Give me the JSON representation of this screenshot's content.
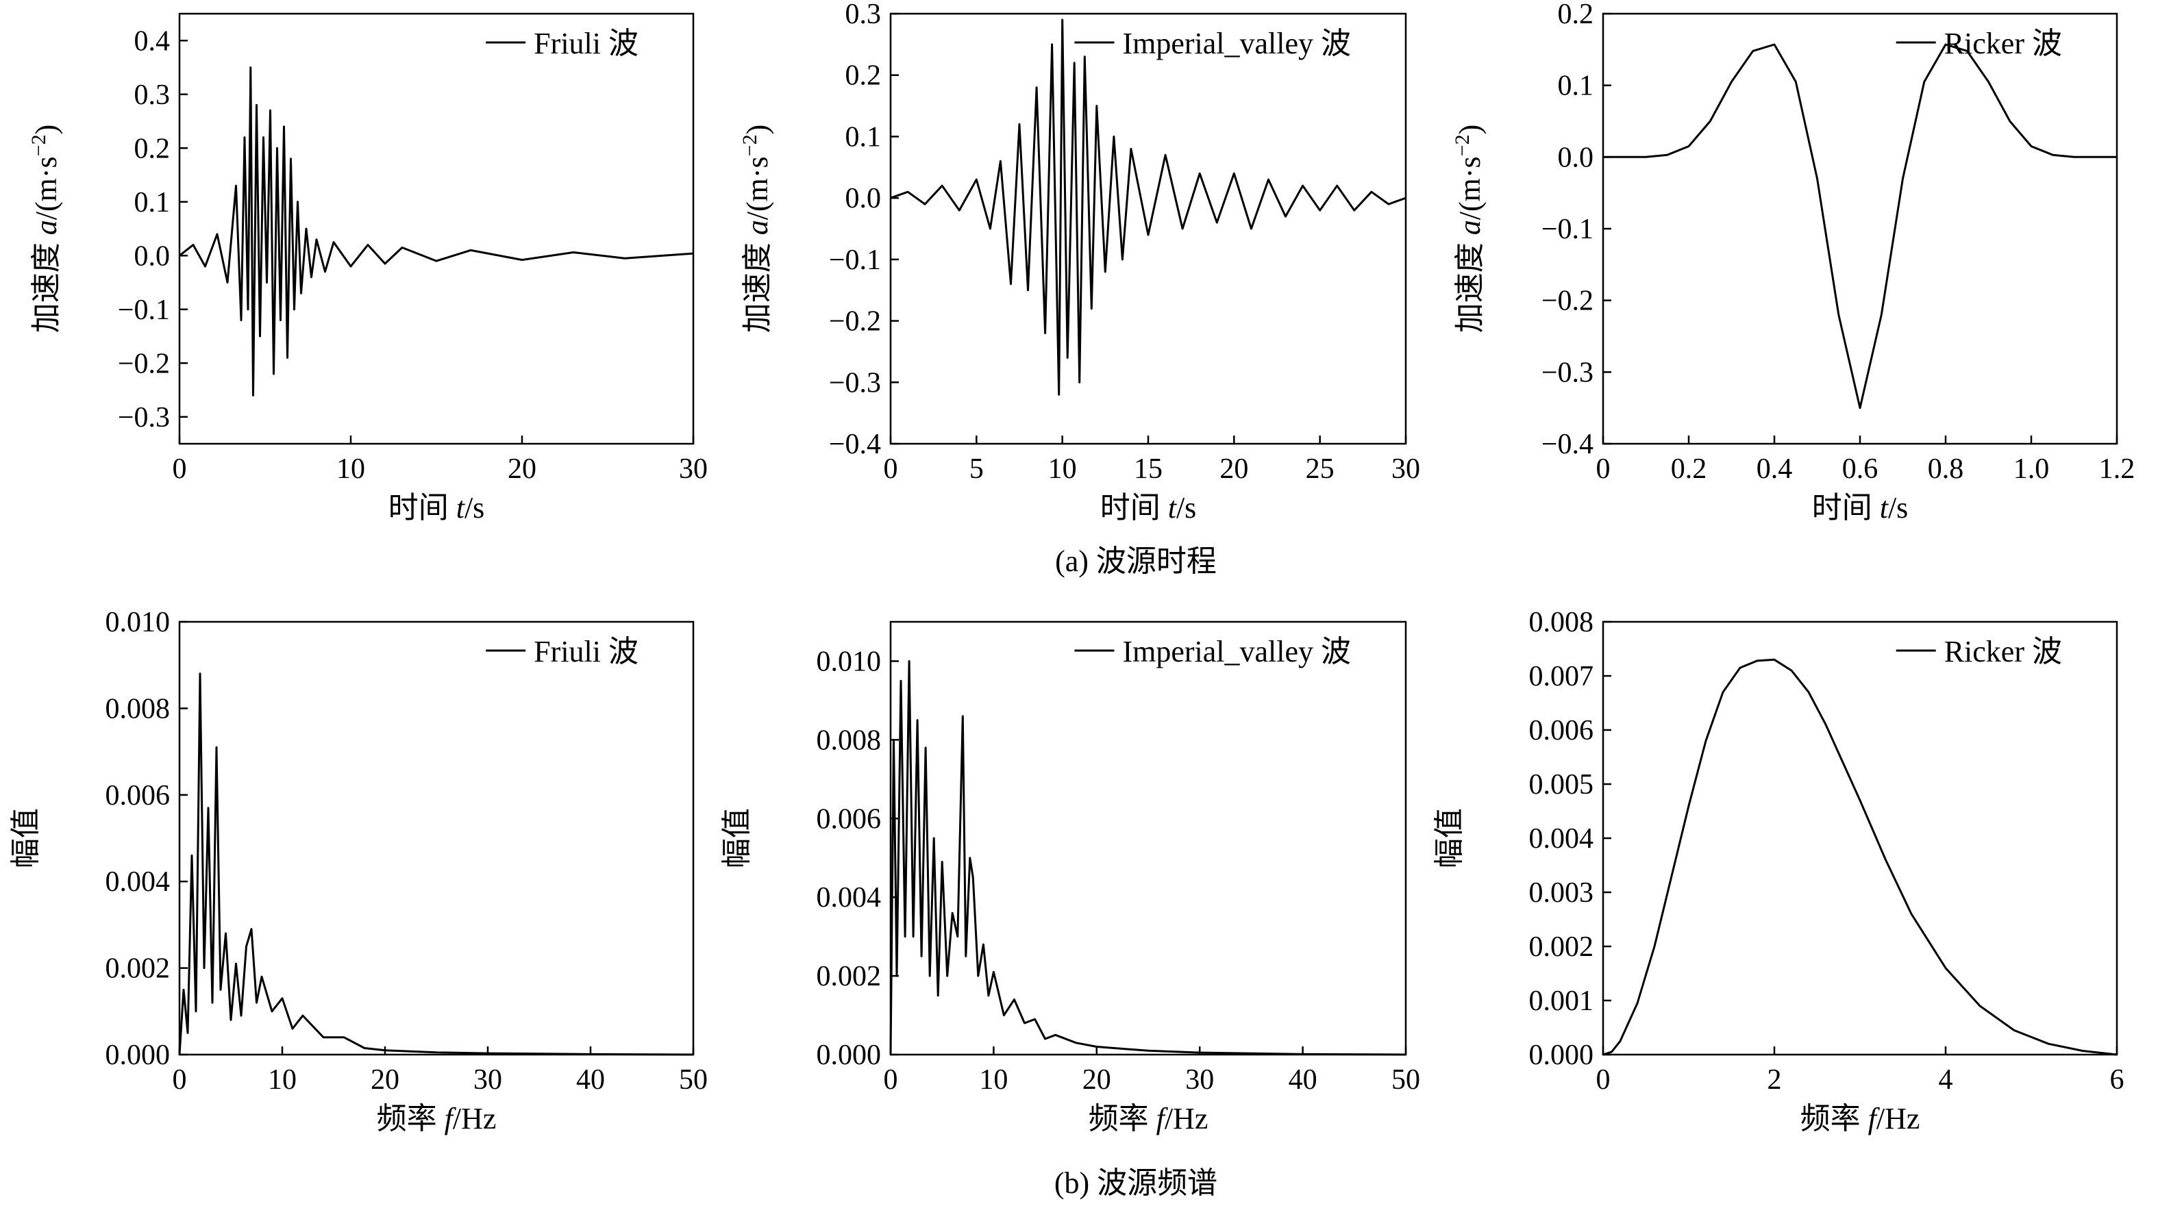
{
  "figure": {
    "captions": [
      {
        "text": "(a) 波源时程"
      },
      {
        "text": "(b) 波源频谱"
      }
    ]
  },
  "chart_data": [
    {
      "id": "friuli-time",
      "type": "line",
      "xlabel_text": "时间 ",
      "xlabel_var": "t",
      "xlabel_unit": "/s",
      "ylabel_text": "加速度 ",
      "ylabel_var": "a",
      "ylabel_unit": "/(m·s",
      "ylabel_sup": "−2",
      "ylabel_close": ")",
      "xlim": [
        0,
        30
      ],
      "ylim": [
        -0.35,
        0.45
      ],
      "xticks": [
        0,
        10,
        20,
        30
      ],
      "xtick_labels": [
        "0",
        "10",
        "20",
        "30"
      ],
      "yticks": [
        -0.3,
        -0.2,
        -0.1,
        0,
        0.1,
        0.2,
        0.3,
        0.4
      ],
      "ytick_labels": [
        "−0.3",
        "−0.2",
        "−0.1",
        "0.0",
        "0.1",
        "0.2",
        "0.3",
        "0.4"
      ],
      "legend": "Friuli 波",
      "legend_position": "top-right",
      "grid": false,
      "series": [
        {
          "name": "Friuli 波",
          "x": [
            0,
            0.8,
            1.5,
            2.2,
            2.8,
            3.3,
            3.6,
            3.8,
            4.0,
            4.15,
            4.3,
            4.5,
            4.7,
            4.9,
            5.1,
            5.3,
            5.5,
            5.7,
            5.9,
            6.1,
            6.3,
            6.5,
            6.7,
            6.9,
            7.1,
            7.4,
            7.7,
            8.0,
            8.5,
            9,
            10,
            11,
            12,
            13,
            15,
            17,
            20,
            23,
            26,
            30
          ],
          "y": [
            0,
            0.02,
            -0.02,
            0.04,
            -0.05,
            0.13,
            -0.12,
            0.22,
            -0.1,
            0.35,
            -0.26,
            0.28,
            -0.15,
            0.22,
            -0.05,
            0.27,
            -0.22,
            0.2,
            -0.12,
            0.24,
            -0.19,
            0.18,
            -0.1,
            0.1,
            -0.07,
            0.05,
            -0.04,
            0.03,
            -0.03,
            0.025,
            -0.02,
            0.02,
            -0.015,
            0.015,
            -0.01,
            0.01,
            -0.008,
            0.006,
            -0.005,
            0.004
          ]
        }
      ]
    },
    {
      "id": "imperial-time",
      "type": "line",
      "xlabel_text": "时间 ",
      "xlabel_var": "t",
      "xlabel_unit": "/s",
      "ylabel_text": "加速度 ",
      "ylabel_var": "a",
      "ylabel_unit": "/(m·s",
      "ylabel_sup": "−2",
      "ylabel_close": ")",
      "xlim": [
        0,
        30
      ],
      "ylim": [
        -0.4,
        0.3
      ],
      "xticks": [
        0,
        5,
        10,
        15,
        20,
        25,
        30
      ],
      "xtick_labels": [
        "0",
        "5",
        "10",
        "15",
        "20",
        "25",
        "30"
      ],
      "yticks": [
        -0.4,
        -0.3,
        -0.2,
        -0.1,
        0,
        0.1,
        0.2,
        0.3
      ],
      "ytick_labels": [
        "−0.4",
        "−0.3",
        "−0.2",
        "−0.1",
        "0.0",
        "0.1",
        "0.2",
        "0.3"
      ],
      "legend": "Imperial_valley 波",
      "legend_position": "top-right",
      "grid": false,
      "series": [
        {
          "name": "Imperial_valley 波",
          "x": [
            0,
            1,
            2,
            3,
            4,
            5,
            5.8,
            6.4,
            7.0,
            7.5,
            8.0,
            8.5,
            9.0,
            9.4,
            9.8,
            10.0,
            10.3,
            10.7,
            11.0,
            11.3,
            11.7,
            12.0,
            12.5,
            13.0,
            13.5,
            14.0,
            15.0,
            16.0,
            17.0,
            18.0,
            19.0,
            20.0,
            21.0,
            22.0,
            23.0,
            24.0,
            25.0,
            26.0,
            27.0,
            28.0,
            29.0,
            30.0
          ],
          "y": [
            0,
            0.01,
            -0.01,
            0.02,
            -0.02,
            0.03,
            -0.05,
            0.06,
            -0.14,
            0.12,
            -0.15,
            0.18,
            -0.22,
            0.25,
            -0.32,
            0.29,
            -0.26,
            0.22,
            -0.3,
            0.23,
            -0.18,
            0.15,
            -0.12,
            0.1,
            -0.1,
            0.08,
            -0.06,
            0.07,
            -0.05,
            0.04,
            -0.04,
            0.04,
            -0.05,
            0.03,
            -0.03,
            0.02,
            -0.02,
            0.02,
            -0.02,
            0.01,
            -0.01,
            0.0
          ]
        }
      ]
    },
    {
      "id": "ricker-time",
      "type": "line",
      "xlabel_text": "时间 ",
      "xlabel_var": "t",
      "xlabel_unit": "/s",
      "ylabel_text": "加速度 ",
      "ylabel_var": "a",
      "ylabel_unit": "/(m·s",
      "ylabel_sup": "−2",
      "ylabel_close": ")",
      "xlim": [
        0,
        1.2
      ],
      "ylim": [
        -0.4,
        0.2
      ],
      "xticks": [
        0,
        0.2,
        0.4,
        0.6,
        0.8,
        1.0,
        1.2
      ],
      "xtick_labels": [
        "0",
        "0.2",
        "0.4",
        "0.6",
        "0.8",
        "1.0",
        "1.2"
      ],
      "yticks": [
        -0.4,
        -0.3,
        -0.2,
        -0.1,
        0,
        0.1,
        0.2
      ],
      "ytick_labels": [
        "−0.4",
        "−0.3",
        "−0.2",
        "−0.1",
        "0.0",
        "0.1",
        "0.2"
      ],
      "legend": "Ricker 波",
      "legend_position": "top-right",
      "grid": false,
      "series": [
        {
          "name": "Ricker 波",
          "x": [
            0,
            0.1,
            0.15,
            0.2,
            0.25,
            0.3,
            0.35,
            0.4,
            0.45,
            0.5,
            0.55,
            0.6,
            0.65,
            0.7,
            0.75,
            0.8,
            0.85,
            0.9,
            0.95,
            1.0,
            1.05,
            1.1,
            1.2
          ],
          "y": [
            0.0,
            0.0,
            0.003,
            0.015,
            0.05,
            0.105,
            0.148,
            0.157,
            0.105,
            -0.03,
            -0.22,
            -0.35,
            -0.22,
            -0.03,
            0.105,
            0.157,
            0.148,
            0.105,
            0.05,
            0.015,
            0.003,
            0.0,
            0.0
          ]
        }
      ]
    },
    {
      "id": "friuli-freq",
      "type": "line",
      "xlabel_text": "频率 ",
      "xlabel_var": "f",
      "xlabel_unit": "/Hz",
      "ylabel_text": "幅值",
      "xlim": [
        0,
        50
      ],
      "ylim": [
        0,
        0.01
      ],
      "xticks": [
        0,
        10,
        20,
        30,
        40,
        50
      ],
      "xtick_labels": [
        "0",
        "10",
        "20",
        "30",
        "40",
        "50"
      ],
      "yticks": [
        0,
        0.002,
        0.004,
        0.006,
        0.008,
        0.01
      ],
      "ytick_labels": [
        "0.000",
        "0.002",
        "0.004",
        "0.006",
        "0.008",
        "0.010"
      ],
      "legend": "Friuli 波",
      "legend_position": "top-right",
      "grid": false,
      "series": [
        {
          "name": "Friuli 波",
          "x": [
            0,
            0.4,
            0.8,
            1.2,
            1.6,
            2.0,
            2.4,
            2.8,
            3.2,
            3.6,
            4.0,
            4.5,
            5.0,
            5.5,
            6.0,
            6.5,
            7.0,
            7.5,
            8.0,
            9.0,
            10,
            11,
            12,
            14,
            16,
            18,
            20,
            25,
            30,
            40,
            50
          ],
          "y": [
            0.0,
            0.0015,
            0.0005,
            0.0046,
            0.001,
            0.0088,
            0.002,
            0.0057,
            0.0012,
            0.0071,
            0.0015,
            0.0028,
            0.0008,
            0.0021,
            0.0009,
            0.0025,
            0.0029,
            0.0012,
            0.0018,
            0.001,
            0.0013,
            0.0006,
            0.0009,
            0.0004,
            0.0004,
            0.00015,
            0.0001,
            5e-05,
            3e-05,
            1e-05,
            0.0
          ]
        }
      ]
    },
    {
      "id": "imperial-freq",
      "type": "line",
      "xlabel_text": "频率 ",
      "xlabel_var": "f",
      "xlabel_unit": "/Hz",
      "ylabel_text": "幅值",
      "xlim": [
        0,
        50
      ],
      "ylim": [
        0,
        0.011
      ],
      "xticks": [
        0,
        10,
        20,
        30,
        40,
        50
      ],
      "xtick_labels": [
        "0",
        "10",
        "20",
        "30",
        "40",
        "50"
      ],
      "yticks": [
        0,
        0.002,
        0.004,
        0.006,
        0.008,
        0.01
      ],
      "ytick_labels": [
        "0.000",
        "0.002",
        "0.004",
        "0.006",
        "0.008",
        "0.010"
      ],
      "legend": "Imperial_valley 波",
      "legend_position": "top-right",
      "grid": false,
      "series": [
        {
          "name": "Imperial_valley 波",
          "x": [
            0,
            0.3,
            0.6,
            1.0,
            1.4,
            1.8,
            2.2,
            2.6,
            3.0,
            3.4,
            3.8,
            4.2,
            4.6,
            5.0,
            5.5,
            6.0,
            6.5,
            7.0,
            7.3,
            7.7,
            8.0,
            8.5,
            9.0,
            9.5,
            10,
            11,
            12,
            13,
            14,
            15,
            16,
            18,
            20,
            25,
            30,
            40,
            50
          ],
          "y": [
            0.0,
            0.008,
            0.002,
            0.0095,
            0.003,
            0.01,
            0.003,
            0.0085,
            0.0025,
            0.0078,
            0.002,
            0.0055,
            0.0015,
            0.0049,
            0.002,
            0.0036,
            0.003,
            0.0086,
            0.0025,
            0.005,
            0.0045,
            0.002,
            0.0028,
            0.0015,
            0.0021,
            0.001,
            0.0014,
            0.0008,
            0.0009,
            0.0004,
            0.0005,
            0.0003,
            0.0002,
            0.0001,
            5e-05,
            1e-05,
            0.0
          ]
        }
      ]
    },
    {
      "id": "ricker-freq",
      "type": "line",
      "xlabel_text": "频率 ",
      "xlabel_var": "f",
      "xlabel_unit": "/Hz",
      "ylabel_text": "幅值",
      "xlim": [
        0,
        6
      ],
      "ylim": [
        0,
        0.008
      ],
      "xticks": [
        0,
        2,
        4,
        6
      ],
      "xtick_labels": [
        "0",
        "2",
        "4",
        "6"
      ],
      "yticks": [
        0,
        0.001,
        0.002,
        0.003,
        0.004,
        0.005,
        0.006,
        0.007,
        0.008
      ],
      "ytick_labels": [
        "0.000",
        "0.001",
        "0.002",
        "0.003",
        "0.004",
        "0.005",
        "0.006",
        "0.007",
        "0.008"
      ],
      "legend": "Ricker 波",
      "legend_position": "top-right",
      "grid": false,
      "series": [
        {
          "name": "Ricker 波",
          "x": [
            0,
            0.1,
            0.2,
            0.4,
            0.6,
            0.8,
            1.0,
            1.2,
            1.4,
            1.6,
            1.8,
            2.0,
            2.2,
            2.4,
            2.6,
            2.8,
            3.0,
            3.3,
            3.6,
            4.0,
            4.4,
            4.8,
            5.2,
            5.6,
            6.0
          ],
          "y": [
            0.0,
            5e-05,
            0.00025,
            0.00095,
            0.002,
            0.0033,
            0.0046,
            0.0058,
            0.0067,
            0.00715,
            0.00728,
            0.0073,
            0.0071,
            0.0067,
            0.0061,
            0.0054,
            0.0047,
            0.0036,
            0.0026,
            0.0016,
            0.0009,
            0.00045,
            0.0002,
            7e-05,
            0.0
          ]
        }
      ]
    }
  ]
}
